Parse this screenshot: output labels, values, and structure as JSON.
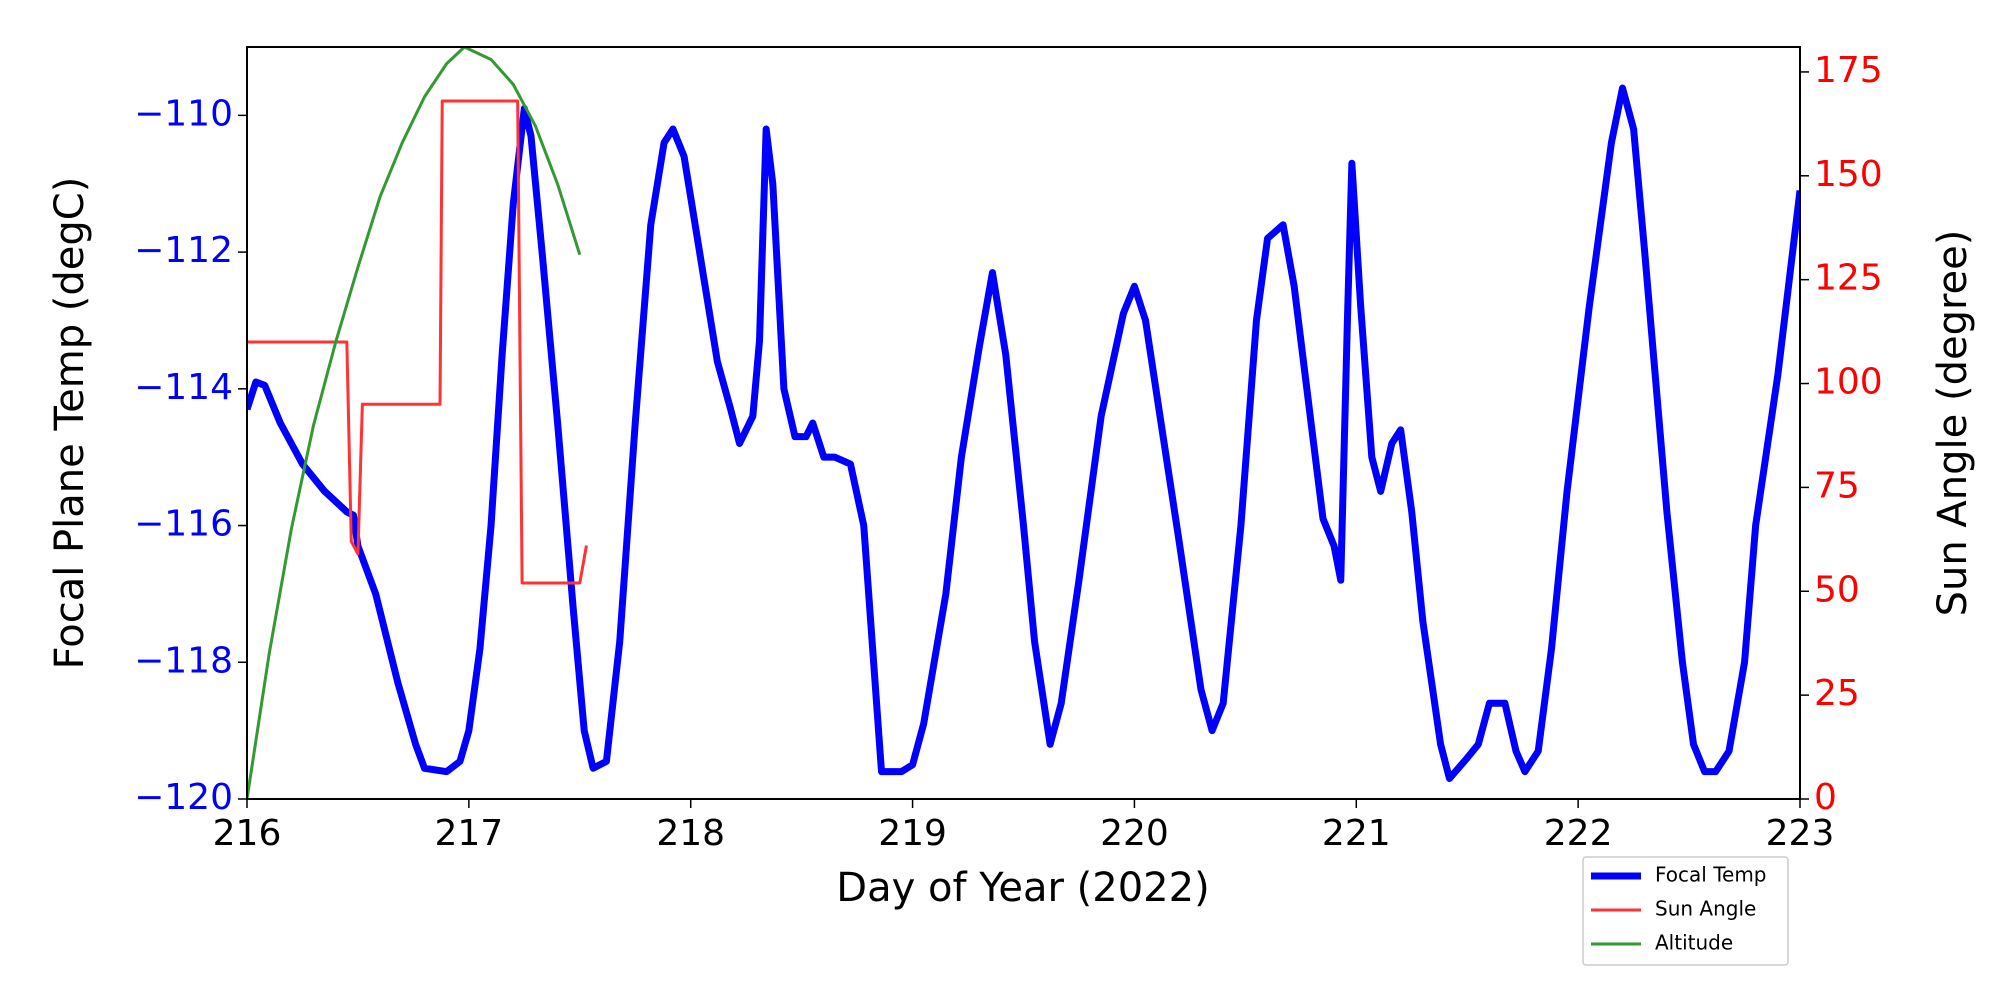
{
  "chart_data": {
    "type": "line",
    "xlabel": "Day of Year (2022)",
    "ylabel": "Focal Plane Temp (degC)",
    "y2label": "Sun Angle (degree)",
    "xlim": [
      216,
      223
    ],
    "xticks": [
      216,
      217,
      218,
      219,
      220,
      221,
      222,
      223
    ],
    "ylim": [
      -120,
      -109
    ],
    "yticks": [
      {
        "value": -120,
        "label": "−120"
      },
      {
        "value": -118,
        "label": "−118"
      },
      {
        "value": -116,
        "label": "−116"
      },
      {
        "value": -114,
        "label": "−114"
      },
      {
        "value": -112,
        "label": "−112"
      },
      {
        "value": -110,
        "label": "−110"
      }
    ],
    "ytick_color": "#0000ff",
    "y2lim": [
      0,
      181
    ],
    "y2ticks": [
      0,
      25,
      50,
      75,
      100,
      125,
      150,
      175
    ],
    "y2tick_color": "#ff0000",
    "legend": "lower right",
    "series": [
      {
        "name": "Focal Temp",
        "color": "#0000ff",
        "axis": "y",
        "x": [
          216.0,
          216.04,
          216.08,
          216.15,
          216.25,
          216.35,
          216.45,
          216.48,
          216.5,
          216.58,
          216.68,
          216.76,
          216.8,
          216.9,
          216.96,
          217.0,
          217.05,
          217.1,
          217.15,
          217.2,
          217.25,
          217.28,
          217.33,
          217.4,
          217.47,
          217.52,
          217.56,
          217.62,
          217.68,
          217.75,
          217.82,
          217.88,
          217.92,
          217.97,
          218.05,
          218.12,
          218.18,
          218.22,
          218.28,
          218.31,
          218.34,
          218.37,
          218.42,
          218.47,
          218.52,
          218.55,
          218.6,
          218.65,
          218.72,
          218.78,
          218.86,
          218.95,
          219.0,
          219.05,
          219.15,
          219.22,
          219.3,
          219.36,
          219.42,
          219.5,
          219.55,
          219.62,
          219.67,
          219.75,
          219.85,
          219.95,
          220.0,
          220.05,
          220.12,
          220.2,
          220.3,
          220.35,
          220.4,
          220.48,
          220.55,
          220.6,
          220.67,
          220.72,
          220.8,
          220.85,
          220.9,
          220.93,
          220.96,
          220.98,
          221.02,
          221.07,
          221.11,
          221.16,
          221.2,
          221.25,
          221.3,
          221.38,
          221.42,
          221.5,
          221.55,
          221.6,
          221.67,
          221.72,
          221.76,
          221.82,
          221.88,
          221.95,
          222.05,
          222.15,
          222.2,
          222.25,
          222.3,
          222.4,
          222.47,
          222.52,
          222.57,
          222.62,
          222.68,
          222.75,
          222.8,
          222.9,
          223.0
        ],
        "values": [
          -114.3,
          -113.9,
          -113.95,
          -114.5,
          -115.1,
          -115.5,
          -115.8,
          -115.85,
          -116.3,
          -117.0,
          -118.3,
          -119.2,
          -119.55,
          -119.6,
          -119.45,
          -119.0,
          -117.8,
          -116.0,
          -113.5,
          -111.3,
          -109.9,
          -110.3,
          -112.0,
          -114.5,
          -117.2,
          -119.0,
          -119.55,
          -119.45,
          -117.7,
          -114.5,
          -111.6,
          -110.4,
          -110.2,
          -110.6,
          -112.2,
          -113.6,
          -114.3,
          -114.8,
          -114.4,
          -113.3,
          -110.2,
          -111.0,
          -114.0,
          -114.7,
          -114.7,
          -114.5,
          -115.0,
          -115.0,
          -115.1,
          -116.0,
          -119.6,
          -119.6,
          -119.5,
          -118.9,
          -117.0,
          -115.0,
          -113.4,
          -112.3,
          -113.5,
          -116.0,
          -117.7,
          -119.2,
          -118.6,
          -116.8,
          -114.4,
          -112.9,
          -112.5,
          -113.0,
          -114.5,
          -116.2,
          -118.4,
          -119.0,
          -118.6,
          -116.0,
          -113.0,
          -111.8,
          -111.6,
          -112.5,
          -114.6,
          -115.9,
          -116.3,
          -116.8,
          -113.0,
          -110.7,
          -112.8,
          -115.0,
          -115.5,
          -114.8,
          -114.6,
          -115.8,
          -117.4,
          -119.2,
          -119.7,
          -119.4,
          -119.2,
          -118.6,
          -118.6,
          -119.3,
          -119.6,
          -119.3,
          -117.8,
          -115.5,
          -112.8,
          -110.4,
          -109.6,
          -110.2,
          -112.0,
          -115.8,
          -118.0,
          -119.2,
          -119.6,
          -119.6,
          -119.3,
          -118.0,
          -116.0,
          -113.8,
          -111.1
        ]
      },
      {
        "name": "Sun Angle",
        "color": "#ff3333",
        "axis": "y2",
        "x": [
          216.0,
          216.45,
          216.47,
          216.5,
          216.52,
          216.87,
          216.88,
          217.22,
          217.24,
          217.5,
          217.53
        ],
        "values": [
          110,
          110,
          62,
          59,
          95,
          95,
          168,
          168,
          52,
          52,
          61
        ]
      },
      {
        "name": "Altitude",
        "color": "#339933",
        "axis": "y2",
        "x": [
          216.0,
          216.1,
          216.2,
          216.3,
          216.4,
          216.5,
          216.6,
          216.7,
          216.8,
          216.9,
          216.98,
          217.1,
          217.2,
          217.3,
          217.4,
          217.5
        ],
        "values": [
          0,
          35,
          65,
          90,
          110,
          128,
          145,
          158,
          169,
          177,
          181,
          178,
          172,
          162,
          148,
          131
        ]
      }
    ]
  }
}
